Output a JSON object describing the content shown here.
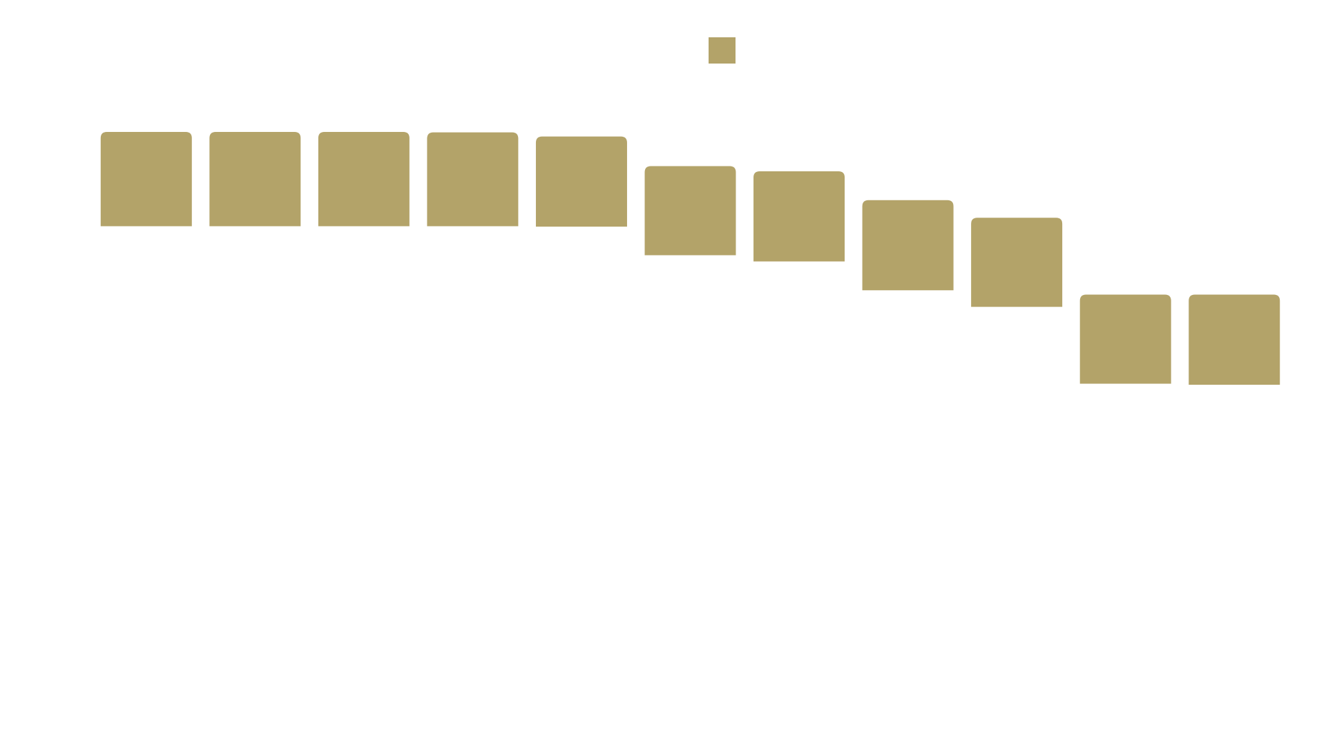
{
  "chart_data": {
    "type": "bar",
    "title": "",
    "xlabel": "",
    "ylabel": "",
    "ylim": [
      -100,
      0
    ],
    "grid": false,
    "legend": {
      "position": "top-center",
      "label": ""
    },
    "bar_color": "#b3a369",
    "orientation": "vertical-from-top",
    "categories": [
      "",
      "",
      "",
      "",
      "",
      "",
      "",
      "",
      "",
      "",
      ""
    ],
    "series": [
      {
        "values": [
          -45.5,
          -45.5,
          -45.5,
          -45.3,
          -43.5,
          -43.0,
          -43.5,
          -43.5,
          -43.0,
          -43.0,
          -43.5
        ]
      }
    ],
    "bar_top_values": [
      -1.0,
      -1.0,
      -1.0,
      -1.2,
      -3.2,
      -17.5,
      -20.0,
      -33.9,
      -42.4,
      -79.5,
      -79.5
    ]
  }
}
